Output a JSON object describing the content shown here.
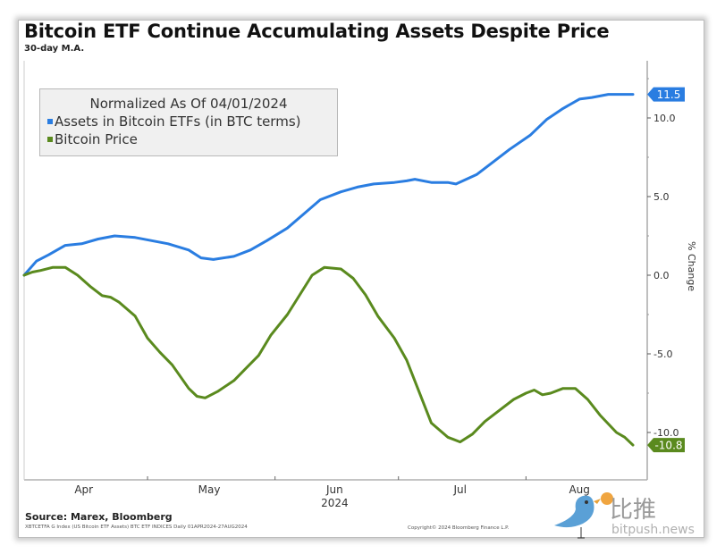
{
  "chart_data": {
    "type": "line",
    "title": "Bitcoin ETF Continue Accumulating Assets Despite Price",
    "subtitle": "30-day M.A.",
    "xlabel": "",
    "ylabel": "% Change",
    "x_range": [
      "2024-04-01",
      "2024-08-27"
    ],
    "x_ticks": [
      "Apr",
      "May",
      "Jun",
      "Jul",
      "Aug"
    ],
    "x_year_label": "2024",
    "y_ticks": [
      10.0,
      5.0,
      0.0,
      -5.0,
      -10.0
    ],
    "y_tick_labels": [
      "10.0",
      "5.0",
      "0.0",
      "-5.0",
      "-10.0"
    ],
    "ylim": [
      -13,
      13.5
    ],
    "y_axis_side": "right",
    "grid": false,
    "legend": {
      "title": "Normalized As Of 04/01/2024",
      "placement": "top-left",
      "entries": [
        "Assets in Bitcoin ETFs (in BTC terms)",
        "Bitcoin Price"
      ]
    },
    "series": [
      {
        "name": "Assets in Bitcoin ETFs (in BTC terms)",
        "color": "#2a7de1",
        "last_value_label": "11.5",
        "x_days": [
          0,
          3,
          6,
          10,
          14,
          18,
          22,
          27,
          31,
          35,
          40,
          43,
          46,
          51,
          55,
          59,
          64,
          68,
          72,
          77,
          81,
          85,
          90,
          93,
          95,
          99,
          103,
          105,
          110,
          114,
          118,
          123,
          127,
          131,
          135,
          138,
          142,
          145,
          148
        ],
        "values": [
          0.0,
          0.9,
          1.3,
          1.9,
          2.0,
          2.3,
          2.5,
          2.4,
          2.2,
          2.0,
          1.6,
          1.1,
          1.0,
          1.2,
          1.6,
          2.2,
          3.0,
          3.9,
          4.8,
          5.3,
          5.6,
          5.8,
          5.9,
          6.0,
          6.1,
          5.9,
          5.9,
          5.8,
          6.4,
          7.2,
          8.0,
          8.9,
          9.9,
          10.6,
          11.2,
          11.3,
          11.5,
          11.5,
          11.5
        ]
      },
      {
        "name": "Bitcoin Price",
        "color": "#5a8a1e",
        "last_value_label": "-10.8",
        "x_days": [
          0,
          2,
          4,
          7,
          10,
          13,
          16,
          19,
          21,
          23,
          27,
          30,
          33,
          36,
          40,
          42,
          44,
          47,
          51,
          54,
          57,
          60,
          64,
          67,
          70,
          73,
          77,
          80,
          83,
          86,
          90,
          93,
          96,
          99,
          103,
          106,
          109,
          112,
          116,
          119,
          122,
          124,
          126,
          128,
          131,
          134,
          137,
          140,
          144,
          146,
          148
        ],
        "values": [
          0.0,
          0.2,
          0.3,
          0.5,
          0.5,
          0.0,
          -0.7,
          -1.3,
          -1.4,
          -1.7,
          -2.6,
          -4.0,
          -4.9,
          -5.7,
          -7.2,
          -7.7,
          -7.8,
          -7.4,
          -6.7,
          -5.9,
          -5.1,
          -3.8,
          -2.5,
          -1.25,
          0.0,
          0.5,
          0.4,
          -0.2,
          -1.25,
          -2.6,
          -4.0,
          -5.4,
          -7.4,
          -9.4,
          -10.3,
          -10.6,
          -10.1,
          -9.3,
          -8.5,
          -7.9,
          -7.5,
          -7.3,
          -7.6,
          -7.5,
          -7.2,
          -7.2,
          -7.9,
          -8.9,
          -10.0,
          -10.3,
          -10.8
        ]
      }
    ]
  },
  "header": {
    "title": "Bitcoin ETF Continue Accumulating Assets Despite Price",
    "subtitle": "30-day M.A."
  },
  "axis": {
    "ylabel": "% Change",
    "months": [
      "Apr",
      "May",
      "Jun",
      "Jul",
      "Aug"
    ],
    "year": "2024",
    "yticks": [
      "10.0",
      "5.0",
      "0.0",
      "-5.0",
      "-10.0"
    ]
  },
  "legend": {
    "title": "Normalized As Of 04/01/2024",
    "items": [
      {
        "label": "Assets in Bitcoin ETFs (in BTC terms)",
        "color": "#2a7de1"
      },
      {
        "label": "Bitcoin Price",
        "color": "#5a8a1e"
      }
    ]
  },
  "footer": {
    "source": "Source: Marex, Bloomberg",
    "index_line": "XBTCETFA G Index (US Bitcoin ETF Assets) BTC ETF INDICES  Daily 01APR2024-27AUG2024",
    "copyright": "Copyright© 2024 Bloomberg Finance L.P."
  },
  "watermark": {
    "text": "比推",
    "url": "bitpush.news"
  }
}
